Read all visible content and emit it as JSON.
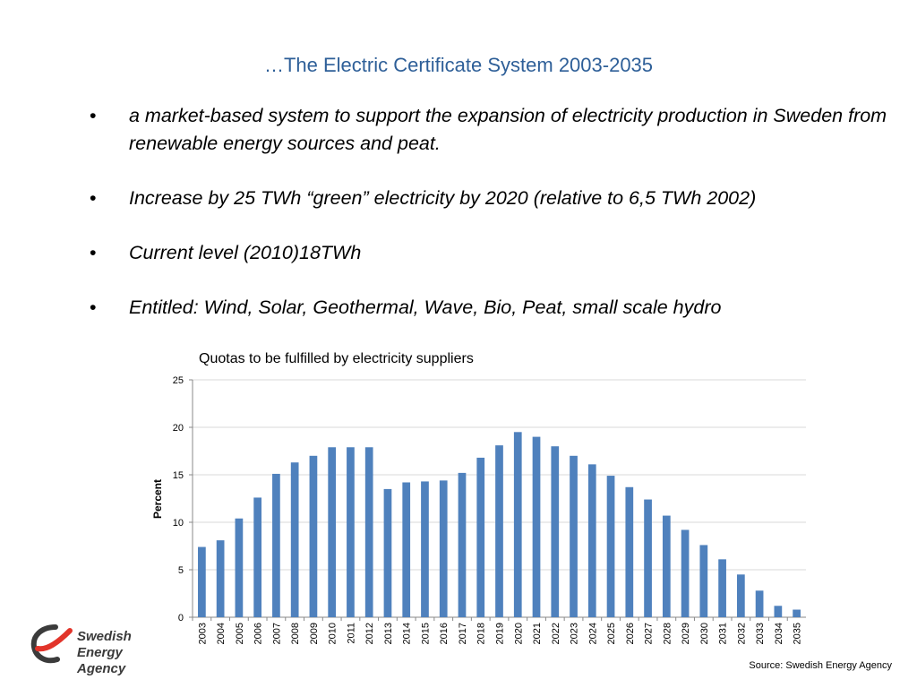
{
  "slide": {
    "title": "…The Electric Certificate System 2003-2035",
    "bullet_char": "•",
    "bullets": [
      "a market-based system to support the expansion of electricity production in Sweden from renewable energy sources and peat.",
      "Increase by 25 TWh “green” electricity by 2020 (relative to 6,5 TWh 2002)",
      "Current level (2010)18TWh",
      "Entitled: Wind, Solar, Geothermal, Wave, Bio, Peat, small scale hydro"
    ],
    "source": "Source: Swedish Energy Agency",
    "logo": {
      "line1": "Swedish",
      "line2": "Energy Agency",
      "icon": "swedish-energy-agency-swoosh"
    }
  },
  "colors": {
    "title": "#2e5f98",
    "bar": "#4f81bd",
    "grid": "#d9d9d9",
    "logo_red": "#e2342a",
    "logo_gray": "#3b3b3b"
  },
  "chart_data": {
    "type": "bar",
    "title": "Quotas to be fulfilled by electricity suppliers",
    "xlabel": "",
    "ylabel": "Percent",
    "ylim": [
      0,
      25
    ],
    "yticks": [
      0,
      5,
      10,
      15,
      20,
      25
    ],
    "grid": true,
    "categories": [
      "2003",
      "2004",
      "2005",
      "2006",
      "2007",
      "2008",
      "2009",
      "2010",
      "2011",
      "2012",
      "2013",
      "2014",
      "2015",
      "2016",
      "2017",
      "2018",
      "2019",
      "2020",
      "2021",
      "2022",
      "2023",
      "2024",
      "2025",
      "2026",
      "2027",
      "2028",
      "2029",
      "2030",
      "2031",
      "2032",
      "2033",
      "2034",
      "2035"
    ],
    "values": [
      7.4,
      8.1,
      10.4,
      12.6,
      15.1,
      16.3,
      17.0,
      17.9,
      17.9,
      17.9,
      13.5,
      14.2,
      14.3,
      14.4,
      15.2,
      16.8,
      18.1,
      19.5,
      19.0,
      18.0,
      17.0,
      16.1,
      14.9,
      13.7,
      12.4,
      10.7,
      9.2,
      7.6,
      6.1,
      4.5,
      2.8,
      1.2,
      0.8
    ]
  }
}
